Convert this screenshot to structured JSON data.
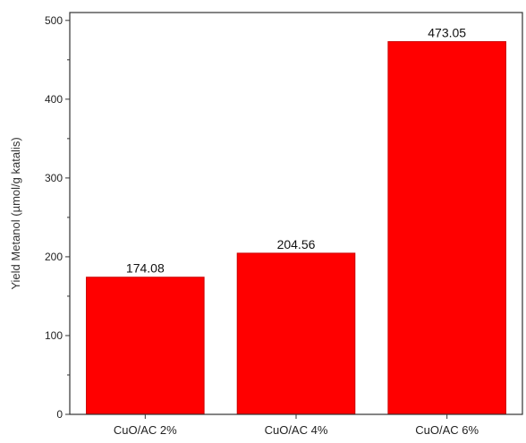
{
  "chart_data": {
    "type": "bar",
    "title": "",
    "xlabel": "",
    "ylabel": "Yield Metanol (µmol/g katalis)",
    "categories": [
      "CuO/AC 2%",
      "CuO/AC 4%",
      "CuO/AC 6%"
    ],
    "values": [
      174.08,
      204.56,
      473.05
    ],
    "value_labels": [
      "174.08",
      "204.56",
      "473.05"
    ],
    "ylim": [
      0,
      510
    ],
    "yticks": [
      0,
      100,
      200,
      300,
      400,
      500
    ],
    "ytick_labels": [
      "0",
      "100",
      "200",
      "300",
      "400",
      "500"
    ],
    "grid": false,
    "legend": "none",
    "bar_color": "#ff0000",
    "bar_edge_color": "#cc0000"
  }
}
